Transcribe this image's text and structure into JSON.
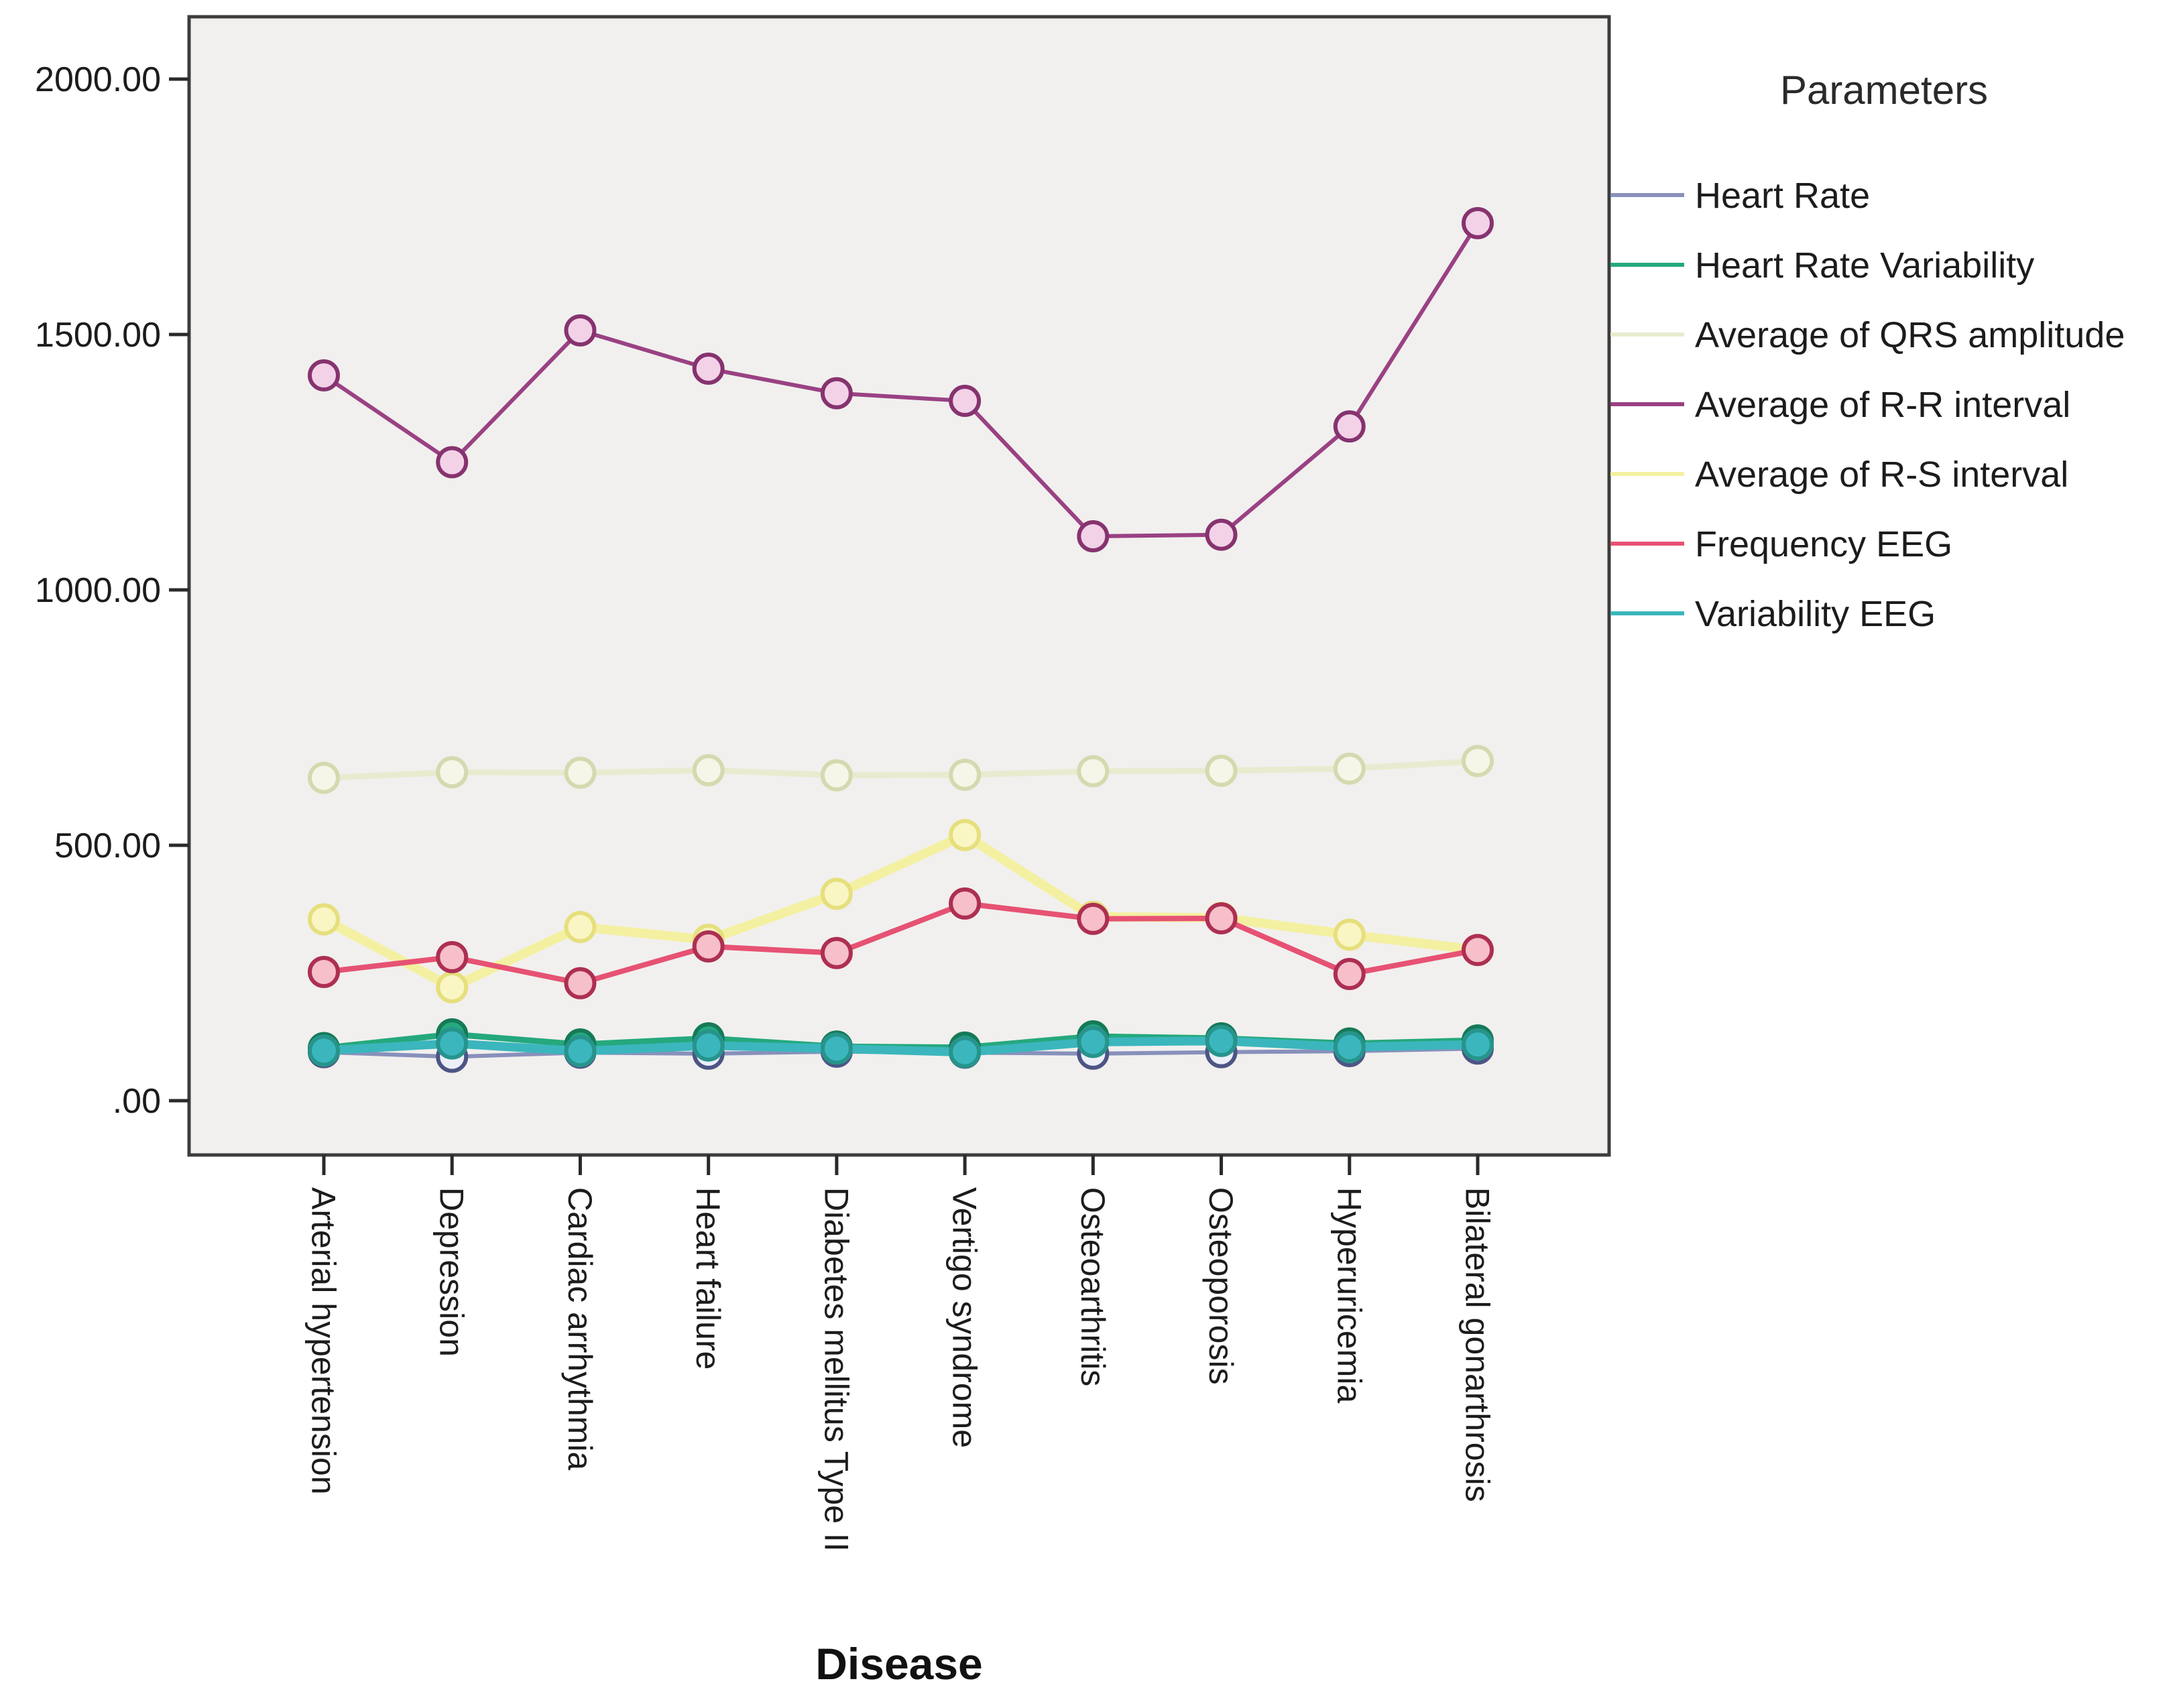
{
  "figure": {
    "xlabel": "Disease",
    "legend_title": "Parameters",
    "plot_background": "#f1f0ee",
    "border_color": "#3c3c3c",
    "tick_color": "#2a2a2a"
  },
  "chart_data": {
    "type": "line",
    "title": "",
    "xlabel": "Disease",
    "ylabel": "",
    "legend_title": "Parameters",
    "legend_position": "right",
    "grid": false,
    "ylim": [
      0,
      2000
    ],
    "yticks": [
      {
        "label": "2000.00",
        "value": 2000
      },
      {
        "label": "1500.00",
        "value": 1500
      },
      {
        "label": "1000.00",
        "value": 1000
      },
      {
        "label": "500.00",
        "value": 500
      },
      {
        "label": ".00",
        "value": 0
      }
    ],
    "categories": [
      "Arterial hypertension",
      "Depression",
      "Cardiac arrhythmia",
      "Heart failure",
      "Diabetes mellitus Type II",
      "Vertigo syndrome",
      "Osteoarthritis",
      "Osteoporosis",
      "Hyperuricemia",
      "Bilateral gonarthrosis"
    ],
    "series": [
      {
        "name": "Heart Rate",
        "line_color": "#8890bb",
        "marker_stroke": "#4d5584",
        "marker_fill": "#edeff8",
        "line_width": 6,
        "values": [
          95,
          86,
          94,
          92,
          96,
          94,
          92,
          95,
          97,
          102
        ]
      },
      {
        "name": "Heart Rate Variability",
        "line_color": "#25a87d",
        "marker_stroke": "#157a58",
        "marker_fill": "#25a87d",
        "line_width": 9,
        "values": [
          103,
          130,
          110,
          122,
          106,
          104,
          126,
          122,
          112,
          118
        ]
      },
      {
        "name": "Average of QRS amplitude",
        "line_color": "#e9ebd0",
        "marker_stroke": "#d6d9af",
        "marker_fill": "#f5f6e8",
        "line_width": 9,
        "values": [
          632,
          643,
          642,
          647,
          637,
          638,
          645,
          646,
          650,
          665
        ]
      },
      {
        "name": "Average of R-R interval",
        "line_color": "#9a4183",
        "marker_stroke": "#86336f",
        "marker_fill": "#f3d2e8",
        "line_width": 6,
        "values": [
          1420,
          1250,
          1508,
          1433,
          1385,
          1370,
          1105,
          1108,
          1320,
          1718
        ]
      },
      {
        "name": "Average of R-S interval",
        "line_color": "#f4f0a1",
        "marker_stroke": "#e6df7d",
        "marker_fill": "#f9f6c4",
        "line_width": 14,
        "values": [
          355,
          222,
          340,
          315,
          405,
          520,
          360,
          358,
          325,
          295
        ]
      },
      {
        "name": "Frequency EEG",
        "line_color": "#e65273",
        "marker_stroke": "#ad2f52",
        "marker_fill": "#f6bfc9",
        "line_width": 8,
        "values": [
          252,
          281,
          230,
          302,
          289,
          386,
          356,
          357,
          248,
          295
        ]
      },
      {
        "name": "Variability EEG",
        "line_color": "#3bb6bd",
        "marker_stroke": "#27948c",
        "marker_fill": "#3bb6bd",
        "line_width": 13,
        "values": [
          98,
          112,
          97,
          108,
          102,
          95,
          115,
          117,
          105,
          110
        ]
      }
    ]
  }
}
